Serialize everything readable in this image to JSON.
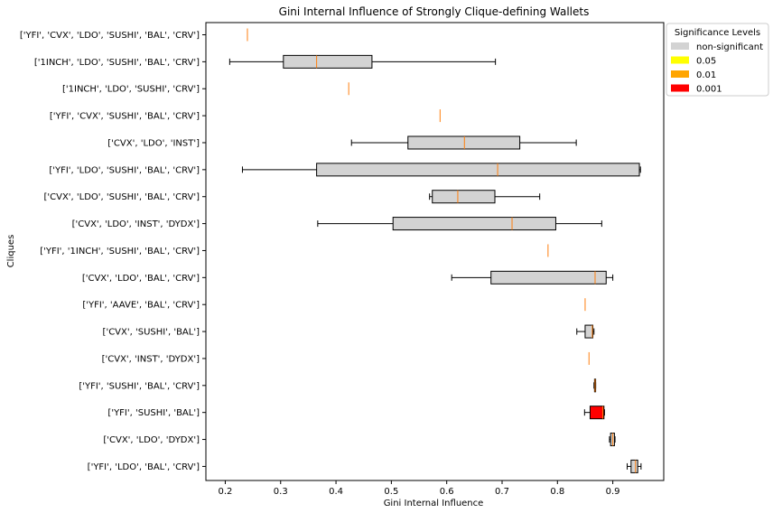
{
  "chart_data": {
    "type": "boxplot",
    "orientation": "horizontal",
    "title": "Gini Internal Influence of Strongly Clique-defining Wallets",
    "xlabel": "Gini Internal Influence",
    "ylabel": "Cliques",
    "xlim": [
      0.165,
      0.992
    ],
    "xticks": [
      0.2,
      0.3,
      0.4,
      0.5,
      0.6,
      0.7,
      0.8,
      0.9
    ],
    "grid": false,
    "median_color": "#ff7f0e",
    "legend": {
      "title": "Significance Levels",
      "placement": "outside-top-right",
      "entries": [
        {
          "label": "non-significant",
          "color": "#d3d3d3"
        },
        {
          "label": "0.05",
          "color": "#ffff00"
        },
        {
          "label": "0.01",
          "color": "#ffa500"
        },
        {
          "label": "0.001",
          "color": "#ff0000"
        }
      ]
    },
    "boxes": [
      {
        "clique": "['YFI', 'CVX', 'LDO', 'SUSHI', 'BAL', 'CRV']",
        "whisker_low": 0.24,
        "q1": 0.24,
        "median": 0.24,
        "q3": 0.24,
        "whisker_high": 0.24,
        "color": "#d3d3d3"
      },
      {
        "clique": "['1INCH', 'LDO', 'SUSHI', 'BAL', 'CRV']",
        "whisker_low": 0.208,
        "q1": 0.305,
        "median": 0.365,
        "q3": 0.465,
        "whisker_high": 0.688,
        "color": "#d3d3d3"
      },
      {
        "clique": "['1INCH', 'LDO', 'SUSHI', 'CRV']",
        "whisker_low": 0.423,
        "q1": 0.423,
        "median": 0.423,
        "q3": 0.423,
        "whisker_high": 0.423,
        "color": "#d3d3d3"
      },
      {
        "clique": "['YFI', 'CVX', 'SUSHI', 'BAL', 'CRV']",
        "whisker_low": 0.588,
        "q1": 0.588,
        "median": 0.588,
        "q3": 0.588,
        "whisker_high": 0.588,
        "color": "#d3d3d3"
      },
      {
        "clique": "['CVX', 'LDO', 'INST']",
        "whisker_low": 0.428,
        "q1": 0.53,
        "median": 0.632,
        "q3": 0.732,
        "whisker_high": 0.834,
        "color": "#d3d3d3"
      },
      {
        "clique": "['YFI', 'LDO', 'SUSHI', 'BAL', 'CRV']",
        "whisker_low": 0.231,
        "q1": 0.365,
        "median": 0.692,
        "q3": 0.948,
        "whisker_high": 0.95,
        "color": "#d3d3d3"
      },
      {
        "clique": "['CVX', 'LDO', 'SUSHI', 'BAL', 'CRV']",
        "whisker_low": 0.569,
        "q1": 0.574,
        "median": 0.62,
        "q3": 0.687,
        "whisker_high": 0.768,
        "color": "#d3d3d3"
      },
      {
        "clique": "['CVX', 'LDO', 'INST', 'DYDX']",
        "whisker_low": 0.367,
        "q1": 0.503,
        "median": 0.718,
        "q3": 0.797,
        "whisker_high": 0.88,
        "color": "#d3d3d3"
      },
      {
        "clique": "['YFI', '1INCH', 'SUSHI', 'BAL', 'CRV']",
        "whisker_low": 0.783,
        "q1": 0.783,
        "median": 0.783,
        "q3": 0.783,
        "whisker_high": 0.783,
        "color": "#d3d3d3"
      },
      {
        "clique": "['CVX', 'LDO', 'BAL', 'CRV']",
        "whisker_low": 0.609,
        "q1": 0.68,
        "median": 0.868,
        "q3": 0.888,
        "whisker_high": 0.9,
        "color": "#d3d3d3"
      },
      {
        "clique": "['YFI', 'AAVE', 'BAL', 'CRV']",
        "whisker_low": 0.85,
        "q1": 0.85,
        "median": 0.85,
        "q3": 0.85,
        "whisker_high": 0.85,
        "color": "#d3d3d3"
      },
      {
        "clique": "['CVX', 'SUSHI', 'BAL']",
        "whisker_low": 0.835,
        "q1": 0.85,
        "median": 0.863,
        "q3": 0.864,
        "whisker_high": 0.866,
        "color": "#d3d3d3"
      },
      {
        "clique": "['CVX', 'INST', 'DYDX']",
        "whisker_low": 0.857,
        "q1": 0.857,
        "median": 0.857,
        "q3": 0.857,
        "whisker_high": 0.857,
        "color": "#d3d3d3"
      },
      {
        "clique": "['YFI', 'SUSHI', 'BAL', 'CRV']",
        "whisker_low": 0.866,
        "q1": 0.867,
        "median": 0.868,
        "q3": 0.869,
        "whisker_high": 0.869,
        "color": "#d3d3d3"
      },
      {
        "clique": "['YFI', 'SUSHI', 'BAL']",
        "whisker_low": 0.849,
        "q1": 0.859,
        "median": 0.882,
        "q3": 0.884,
        "whisker_high": 0.885,
        "color": "#ff0000"
      },
      {
        "clique": "['CVX', 'LDO', 'DYDX']",
        "whisker_low": 0.894,
        "q1": 0.896,
        "median": 0.9,
        "q3": 0.903,
        "whisker_high": 0.904,
        "color": "#d3d3d3"
      },
      {
        "clique": "['YFI', 'LDO', 'BAL', 'CRV']",
        "whisker_low": 0.926,
        "q1": 0.933,
        "median": 0.941,
        "q3": 0.945,
        "whisker_high": 0.951,
        "color": "#d3d3d3"
      }
    ]
  }
}
